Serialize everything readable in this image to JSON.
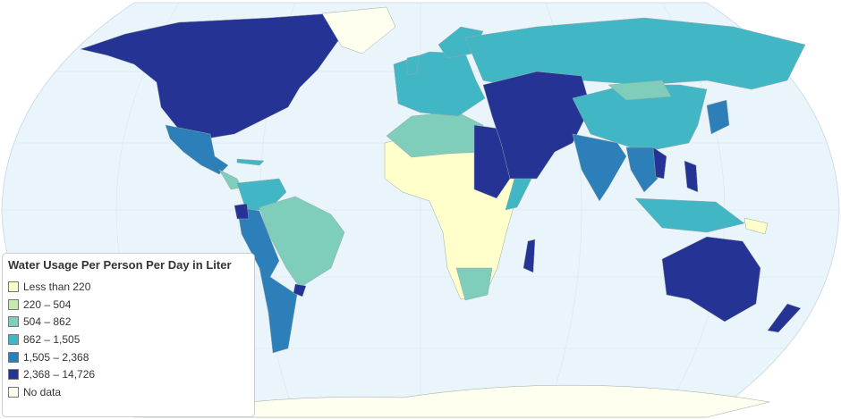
{
  "legend": {
    "title": "Water Usage Per Person Per Day in Liter",
    "items": [
      {
        "label": "Less than 220",
        "color": "#ffffcc"
      },
      {
        "label": "220 – 504",
        "color": "#c7e9b4"
      },
      {
        "label": "504 – 862",
        "color": "#7fcdbb"
      },
      {
        "label": "862 – 1,505",
        "color": "#41b6c4"
      },
      {
        "label": "1,505 – 2,368",
        "color": "#2c7fb8"
      },
      {
        "label": "2,368 – 14,726",
        "color": "#253494"
      },
      {
        "label": "No data",
        "color": "#fffff0"
      }
    ]
  }
}
